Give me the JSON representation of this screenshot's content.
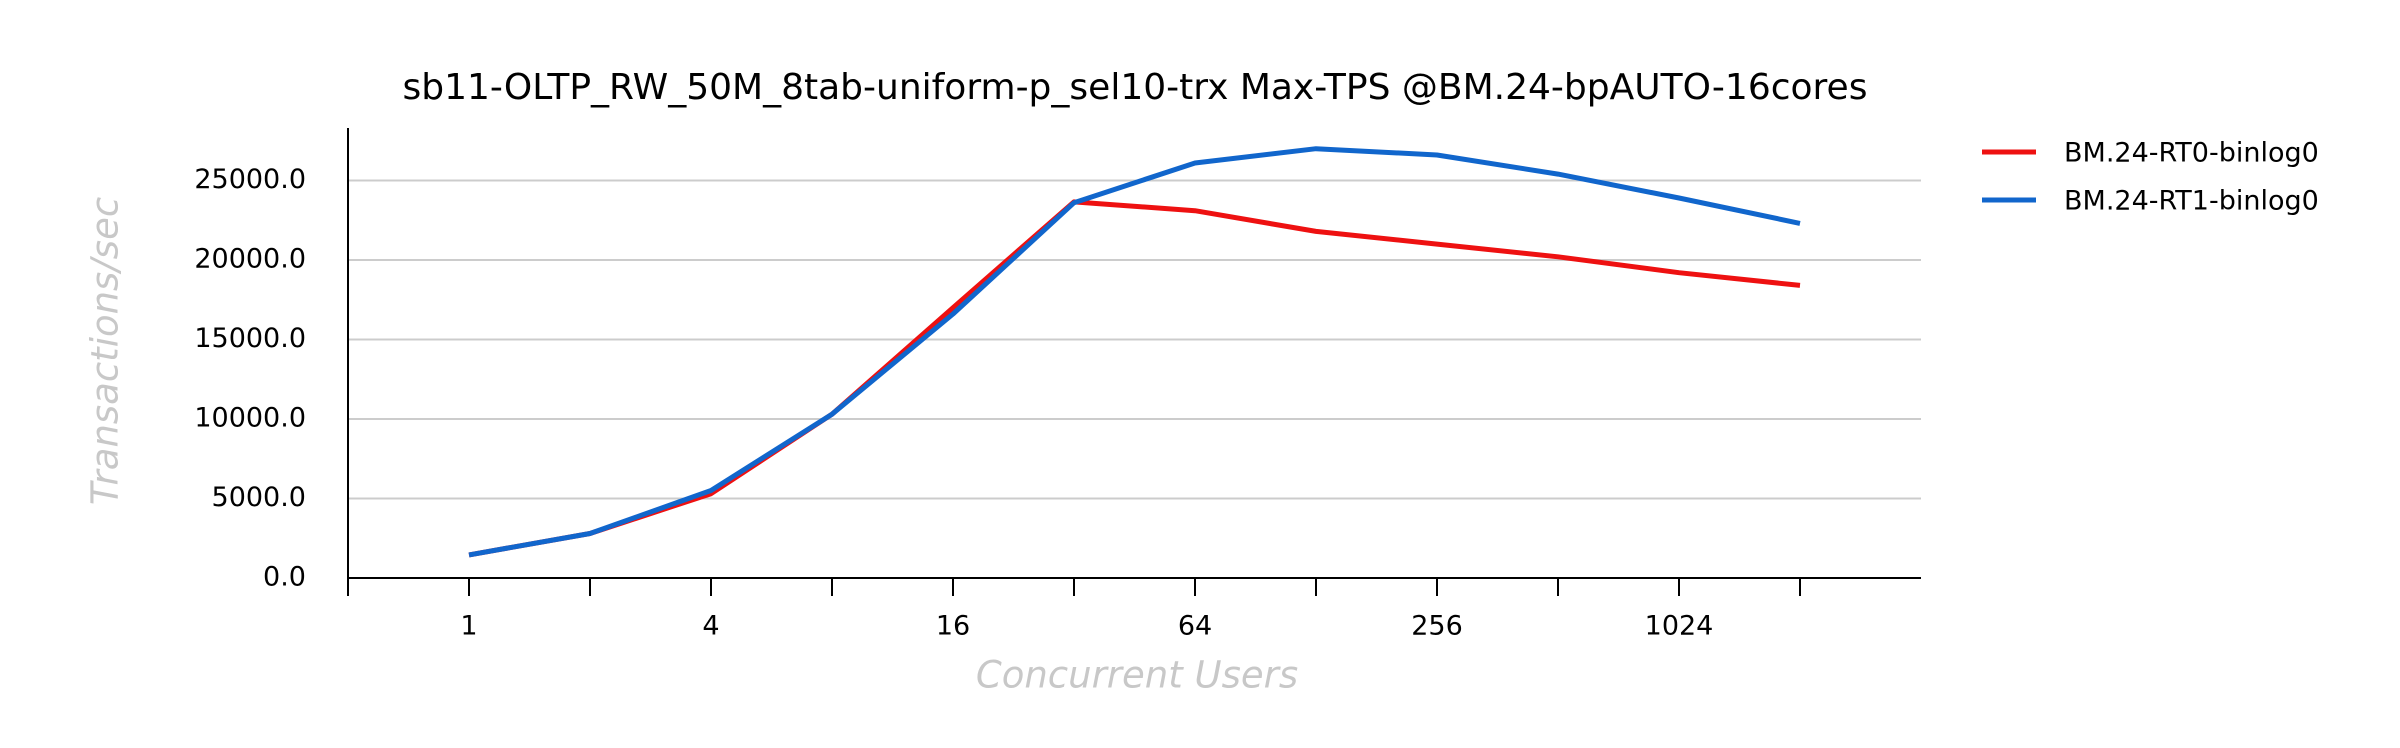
{
  "chart_data": {
    "type": "line",
    "title": "sb11-OLTP_RW_50M_8tab-uniform-p_sel10-trx Max-TPS @BM.24-bpAUTO-16cores",
    "x_label": "Concurrent Users",
    "y_label": "Transactions/sec",
    "categories": [
      "1",
      null,
      "4",
      null,
      "16",
      null,
      "64",
      null,
      "256",
      null,
      "1024",
      null
    ],
    "series": [
      {
        "name": "BM.24-RT0-binlog0",
        "color": "#ee1111",
        "values": [
          1450,
          2800,
          5300,
          10300,
          17000,
          23650,
          23100,
          21800,
          21000,
          20200,
          19200,
          18400
        ]
      },
      {
        "name": "BM.24-RT1-binlog0",
        "color": "#1166cc",
        "values": [
          1450,
          2800,
          5500,
          10300,
          16600,
          23600,
          26100,
          27000,
          26600,
          25400,
          23900,
          22300
        ]
      }
    ],
    "ylim": [
      0,
      28300
    ],
    "yticks": [
      {
        "value": 0,
        "label": "0.0"
      },
      {
        "value": 5000,
        "label": "5000.0"
      },
      {
        "value": 10000,
        "label": "10000.0"
      },
      {
        "value": 15000,
        "label": "15000.0"
      },
      {
        "value": 20000,
        "label": "20000.0"
      },
      {
        "value": 25000,
        "label": "25000.0"
      }
    ],
    "grid": true,
    "legend": "outside-right"
  }
}
